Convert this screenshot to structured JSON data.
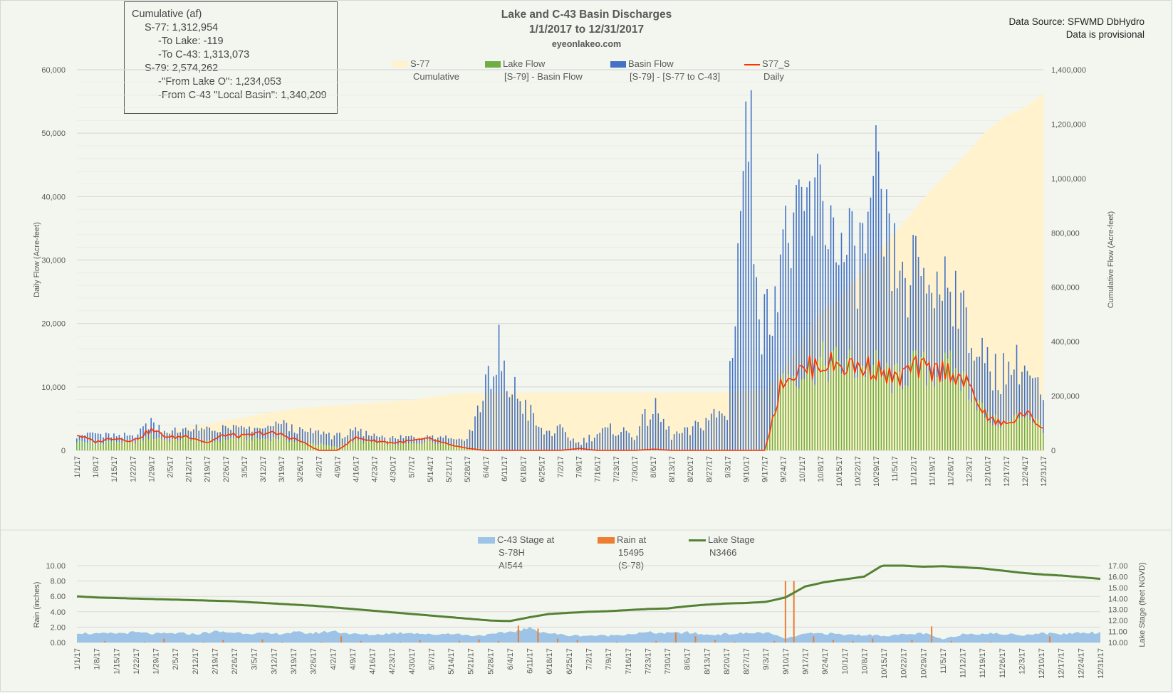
{
  "title": {
    "line1": "Lake and C-43 Basin Discharges",
    "line2": "1/1/2017 to 12/31/2017",
    "site": "eyeonlakeo.com"
  },
  "source": {
    "line1": "Data Source: SFWMD DbHydro",
    "line2": "Data is provisional"
  },
  "cumulative_box": {
    "heading": "Cumulative (af)",
    "s77": "S-77:  1,312,954",
    "to_lake": "-To Lake:  -119",
    "to_c43": "-To C-43:   1,313,073",
    "s79": "S-79:  2,574,262",
    "from_lake": "-''From Lake O'':   1,234,053",
    "from_basin": "-From C-43 ''Local Basin'':  1,340,209"
  },
  "colors": {
    "background": "#f2f6ee",
    "cumulative_area": "#fff2cc",
    "lake_flow": "#70ad47",
    "basin_flow": "#4472c4",
    "s77_line": "#ff3300",
    "c43_stage": "#9dc3e6",
    "rain": "#ed7d31",
    "lake_stage": "#548235",
    "grid": "#d9d9d9",
    "axis_text": "#595959"
  },
  "chart_data": [
    {
      "type": "bar",
      "id": "discharges",
      "title": "Lake and C-43 Basin Discharges",
      "ylabel": "Daily Flow (Acre-feet)",
      "y2label": "Cumulative Flow (Acre-feet)",
      "ylim": [
        0,
        60000
      ],
      "y2lim": [
        0,
        1400000
      ],
      "yticks": [
        "0",
        "10,000",
        "20,000",
        "30,000",
        "40,000",
        "50,000",
        "60,000"
      ],
      "y2ticks": [
        "0",
        "200,000",
        "400,000",
        "600,000",
        "800,000",
        "1,000,000",
        "1,200,000",
        "1,400,000"
      ],
      "grid": true,
      "legend_position": "top",
      "legend": [
        {
          "name": "S-77",
          "sub": "Cumulative",
          "kind": "area",
          "color": "#fff2cc"
        },
        {
          "name": "Lake Flow",
          "sub": "[S-79] - Basin Flow",
          "kind": "bar",
          "color": "#70ad47"
        },
        {
          "name": "Basin Flow",
          "sub": "[S-79] - [S-77 to C-43]",
          "kind": "bar",
          "color": "#4472c4"
        },
        {
          "name": "S77_S",
          "sub": "Daily",
          "kind": "line",
          "color": "#ff3300"
        }
      ],
      "xtick_labels": [
        "1/1/17",
        "1/8/17",
        "1/15/17",
        "1/22/17",
        "1/29/17",
        "2/5/17",
        "2/12/17",
        "2/19/17",
        "2/26/17",
        "3/5/17",
        "3/12/17",
        "3/19/17",
        "3/26/17",
        "4/2/17",
        "4/9/17",
        "4/16/17",
        "4/23/17",
        "4/30/17",
        "5/7/17",
        "5/14/17",
        "5/21/17",
        "5/28/17",
        "6/4/17",
        "6/11/17",
        "6/18/17",
        "6/25/17",
        "7/2/17",
        "7/9/17",
        "7/16/17",
        "7/23/17",
        "7/30/17",
        "8/6/17",
        "8/13/17",
        "8/20/17",
        "8/27/17",
        "9/3/17",
        "9/10/17",
        "9/17/17",
        "9/24/17",
        "10/1/17",
        "10/8/17",
        "10/15/17",
        "10/22/17",
        "10/29/17",
        "11/5/17",
        "11/12/17",
        "11/19/17",
        "11/26/17",
        "12/3/17",
        "12/10/17",
        "12/17/17",
        "12/24/17",
        "12/31/17"
      ],
      "series_weekly": {
        "note": "Approximate values read from chart at each weekly tick (acre-feet)",
        "s77_daily": [
          2500,
          1300,
          2000,
          1500,
          3200,
          2000,
          2300,
          1200,
          2500,
          2200,
          2800,
          2500,
          1500,
          0,
          0,
          2000,
          1500,
          1200,
          1500,
          1800,
          900,
          300,
          0,
          0,
          0,
          0,
          0,
          300,
          0,
          0,
          0,
          200,
          0,
          0,
          0,
          0,
          0,
          0,
          11500,
          12500,
          13800,
          13500,
          13200,
          13000,
          11000,
          13000,
          12500,
          12700,
          10000,
          5000,
          4000,
          6000,
          3500
        ],
        "lake_flow": [
          1500,
          1200,
          1500,
          1200,
          2200,
          1600,
          2000,
          1200,
          1800,
          2000,
          1800,
          2000,
          1200,
          1000,
          500,
          1500,
          1200,
          1000,
          1000,
          1500,
          1000,
          500,
          0,
          0,
          0,
          0,
          0,
          0,
          0,
          0,
          0,
          0,
          0,
          0,
          0,
          0,
          0,
          0,
          11500,
          12500,
          13800,
          13500,
          13200,
          13000,
          11000,
          13000,
          12500,
          12700,
          10000,
          5000,
          4000,
          6000,
          3500
        ],
        "basin_flow": [
          1000,
          1500,
          800,
          1000,
          2500,
          1200,
          1500,
          2000,
          1800,
          1500,
          1500,
          2500,
          1800,
          2000,
          1800,
          1500,
          1200,
          900,
          1200,
          1000,
          1200,
          1200,
          10500,
          11500,
          8000,
          3000,
          3200,
          1200,
          2800,
          3500,
          2500,
          7000,
          2500,
          3000,
          5500,
          6000,
          55000,
          20000,
          22500,
          26000,
          28000,
          19000,
          18000,
          27500,
          17500,
          15000,
          15000,
          14500,
          10000,
          8000,
          9000,
          8200,
          4500
        ],
        "s77_cumulative": [
          0,
          10000,
          25000,
          40000,
          55000,
          70000,
          85000,
          95000,
          110000,
          120000,
          135000,
          145000,
          155000,
          160000,
          165000,
          170000,
          175000,
          180000,
          185000,
          195000,
          205000,
          210000,
          212000,
          212000,
          212000,
          212000,
          212000,
          212000,
          212000,
          212000,
          212000,
          212000,
          212000,
          212000,
          212000,
          215000,
          218000,
          220000,
          300000,
          400000,
          510000,
          560000,
          640000,
          720000,
          800000,
          880000,
          960000,
          1030000,
          1100000,
          1180000,
          1230000,
          1260000,
          1312954
        ]
      }
    },
    {
      "type": "line",
      "id": "stage_rain",
      "ylabel": "Rain (inches)",
      "y2label": "Lake Stage (feet NGVD)",
      "ylim": [
        0,
        10
      ],
      "y2lim": [
        10,
        17
      ],
      "yticks": [
        "0.00",
        "2.00",
        "4.00",
        "6.00",
        "8.00",
        "10.00"
      ],
      "y2ticks": [
        "10.00",
        "11.00",
        "12.00",
        "13.00",
        "14.00",
        "15.00",
        "16.00",
        "17.00"
      ],
      "grid": true,
      "legend_position": "top",
      "legend": [
        {
          "name": "C-43 Stage at",
          "sub": [
            "S-78H",
            "AI544"
          ],
          "kind": "area",
          "color": "#9dc3e6"
        },
        {
          "name": "Rain at",
          "sub": [
            "15495",
            "(S-78)"
          ],
          "kind": "bar",
          "color": "#ed7d31"
        },
        {
          "name": "Lake Stage",
          "sub": [
            "N3466"
          ],
          "kind": "line",
          "color": "#548235"
        }
      ],
      "xtick_labels": [
        "1/1/17",
        "1/8/17",
        "1/15/17",
        "1/22/17",
        "1/29/17",
        "2/5/17",
        "2/12/17",
        "2/19/17",
        "2/26/17",
        "3/5/17",
        "3/12/17",
        "3/19/17",
        "3/26/17",
        "4/2/17",
        "4/9/17",
        "4/16/17",
        "4/23/17",
        "4/30/17",
        "5/7/17",
        "5/14/17",
        "5/21/17",
        "5/28/17",
        "6/4/17",
        "6/11/17",
        "6/18/17",
        "6/25/17",
        "7/2/17",
        "7/9/17",
        "7/16/17",
        "7/23/17",
        "7/30/17",
        "8/6/17",
        "8/13/17",
        "8/20/17",
        "8/27/17",
        "9/3/17",
        "9/10/17",
        "9/17/17",
        "9/24/17",
        "10/1/17",
        "10/8/17",
        "10/15/17",
        "10/22/17",
        "10/29/17",
        "11/5/17",
        "11/12/17",
        "11/19/17",
        "11/26/17",
        "12/3/17",
        "12/10/17",
        "12/17/17",
        "12/24/17",
        "12/31/17"
      ],
      "series_weekly": {
        "lake_stage_ft": [
          14.2,
          14.1,
          14.05,
          14.0,
          13.95,
          13.9,
          13.85,
          13.8,
          13.75,
          13.65,
          13.55,
          13.45,
          13.35,
          13.2,
          13.05,
          12.9,
          12.75,
          12.6,
          12.45,
          12.3,
          12.15,
          12.0,
          11.95,
          12.3,
          12.6,
          12.7,
          12.8,
          12.85,
          12.95,
          13.05,
          13.1,
          13.3,
          13.45,
          13.55,
          13.6,
          13.7,
          14.1,
          15.1,
          15.5,
          15.75,
          16.0,
          17.1,
          17.0,
          16.9,
          16.95,
          16.85,
          16.75,
          16.55,
          16.35,
          16.2,
          16.1,
          15.95,
          15.8
        ],
        "c43_stage_in_rain_units": [
          1.3,
          1.1,
          1.2,
          1.3,
          1.1,
          1.2,
          1.1,
          1.4,
          1.3,
          1.2,
          1.1,
          1.3,
          1.2,
          1.5,
          1.1,
          1.0,
          1.2,
          1.3,
          1.0,
          1.2,
          0.9,
          1.0,
          1.4,
          1.8,
          1.2,
          0.9,
          0.9,
          0.9,
          1.1,
          1.3,
          1.2,
          1.3,
          1.0,
          1.1,
          1.2,
          1.3,
          0.5,
          1.1,
          1.2,
          1.0,
          1.0,
          0.9,
          1.0,
          1.2,
          0.4,
          1.1,
          1.2,
          1.1,
          1.0,
          1.2,
          1.1,
          1.3,
          1.3
        ],
        "rain_in": [
          0,
          0.2,
          0,
          0.1,
          0.5,
          0,
          0.1,
          0.3,
          0,
          0.4,
          0.1,
          0,
          0.1,
          0.8,
          0.2,
          0,
          0.1,
          0.3,
          0,
          0.2,
          0.4,
          0.2,
          2.2,
          1.8,
          0.5,
          0.3,
          0,
          0.1,
          0,
          0.2,
          1.2,
          0.8,
          0.3,
          0.1,
          0,
          0.2,
          8.0,
          0.8,
          0.3,
          0.2,
          0.5,
          0,
          0.3,
          2.1,
          0.2,
          0,
          0.1,
          0,
          0,
          0.8,
          0,
          0,
          0
        ]
      }
    }
  ]
}
